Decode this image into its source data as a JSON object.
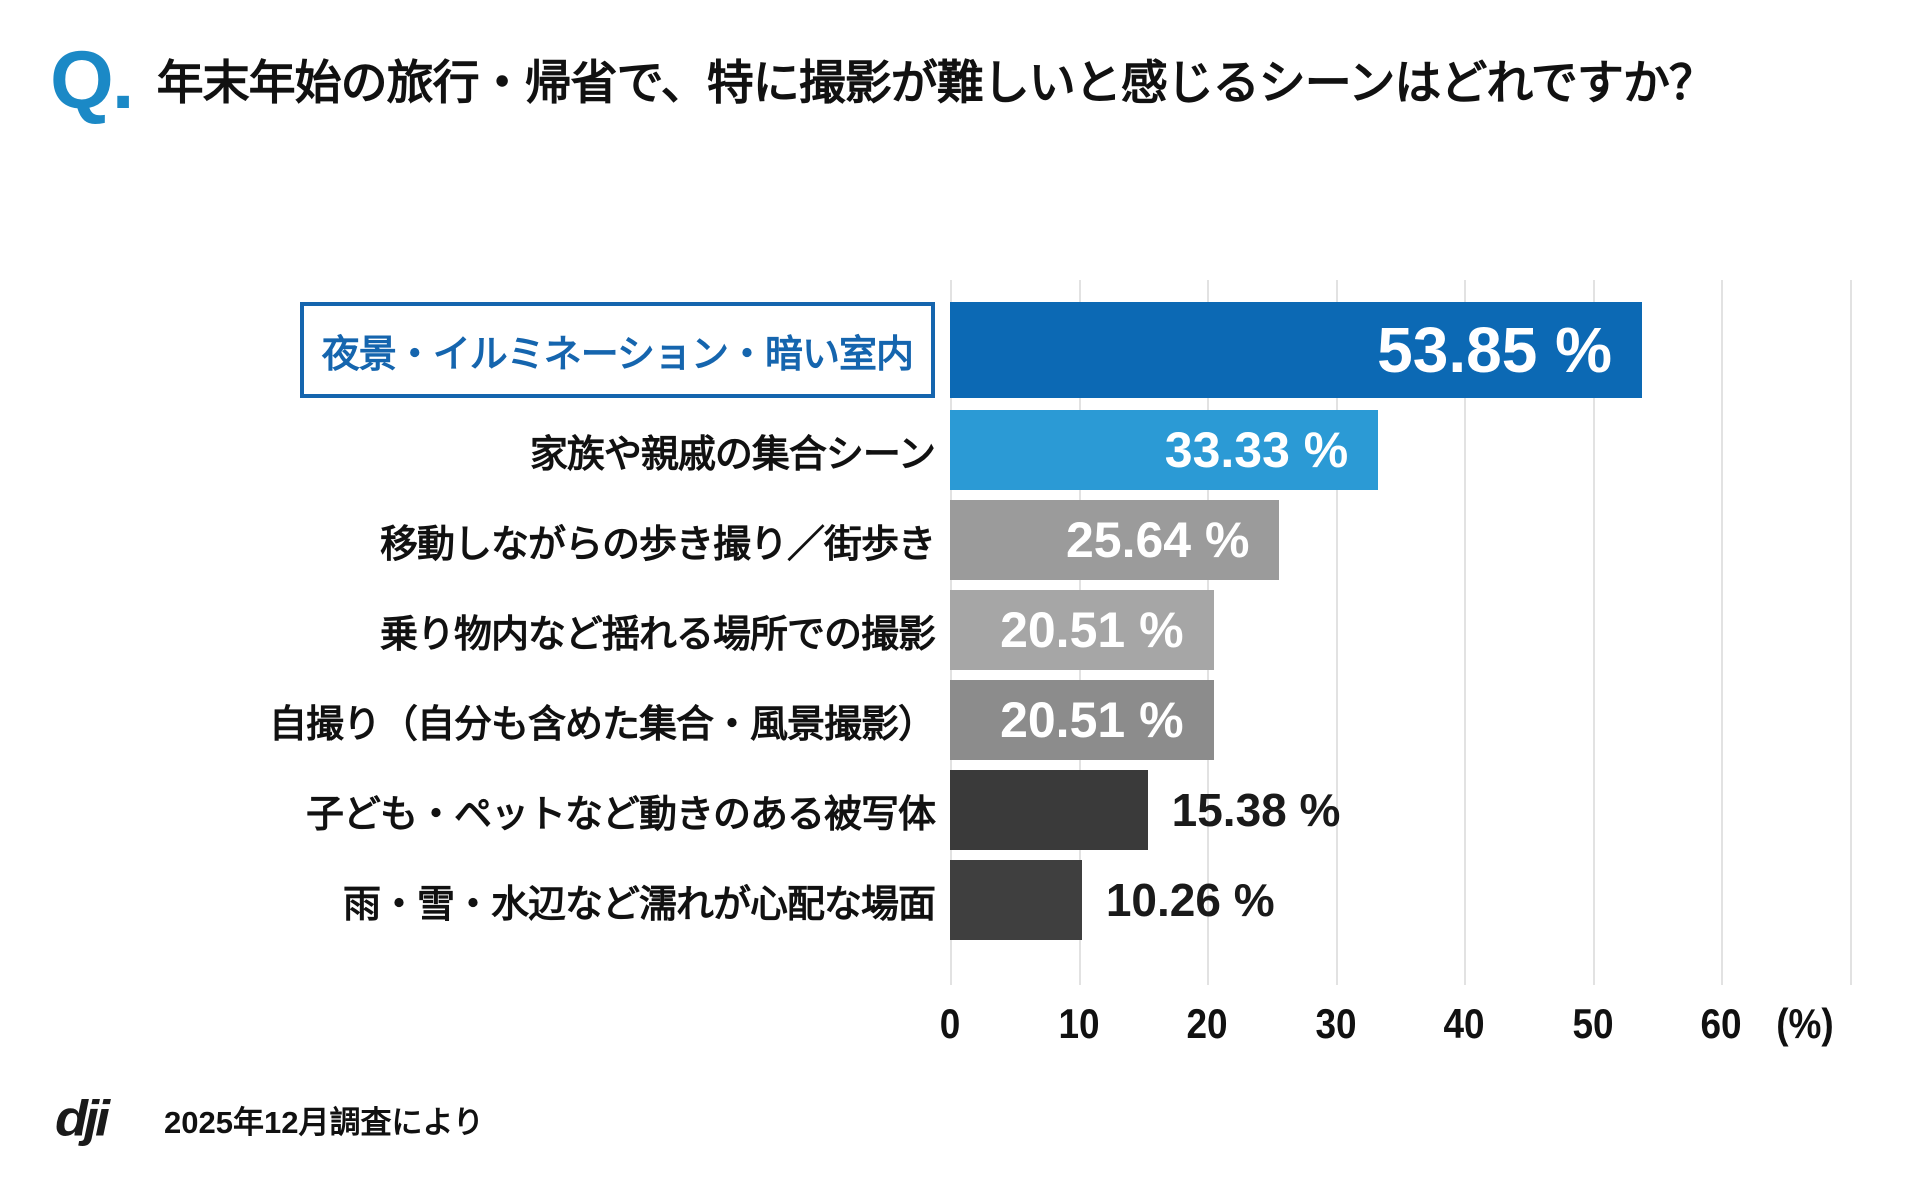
{
  "title": {
    "q_mark": "Q.",
    "text": "年末年始の旅行・帰省で、特に撮影が難しいと感じるシーンはどれですか？"
  },
  "chart_data": {
    "type": "bar",
    "orientation": "horizontal",
    "title": "年末年始の旅行・帰省で、特に撮影が難しいと感じるシーンはどれですか？",
    "categories": [
      "夜景・イルミネーション・暗い室内",
      "家族や親戚の集合シーン",
      "移動しながらの歩き撮り／街歩き",
      "乗り物内など揺れる場所での撮影",
      "自撮り（自分も含めた集合・風景撮影）",
      "子ども・ペットなど動きのある被写体",
      "雨・雪・水辺など濡れが心配な場面"
    ],
    "values": [
      53.85,
      33.33,
      25.64,
      20.51,
      20.51,
      15.38,
      10.26
    ],
    "value_labels": [
      "53.85 %",
      "33.33 %",
      "25.64 %",
      "20.51 %",
      "20.51 %",
      "15.38 %",
      "10.26 %"
    ],
    "bar_colors": [
      "#0c69b4",
      "#2b9ad5",
      "#9b9b9b",
      "#a6a6a6",
      "#8c8c8c",
      "#3a3a3a",
      "#3f3f3f"
    ],
    "label_inside": [
      true,
      true,
      true,
      true,
      true,
      false,
      false
    ],
    "highlight_index": 0,
    "highlight_color": "#1565ae",
    "xlim": [
      0,
      60
    ],
    "x_ticks": [
      "0",
      "10",
      "20",
      "30",
      "40",
      "50",
      "60"
    ],
    "x_unit": "(%)",
    "grid": true,
    "gridline_color": "#e2e2e2",
    "inside_label_color": "#ffffff",
    "outside_label_color": "#1a1a1a"
  },
  "footer": {
    "logo_text": "dji",
    "source": "2025年12月調査により"
  },
  "colors": {
    "q_mark_blue": "#1b89c6",
    "primary_bar_blue": "#0c69b4",
    "secondary_bar_blue": "#2b9ad5",
    "background": "#ffffff"
  }
}
